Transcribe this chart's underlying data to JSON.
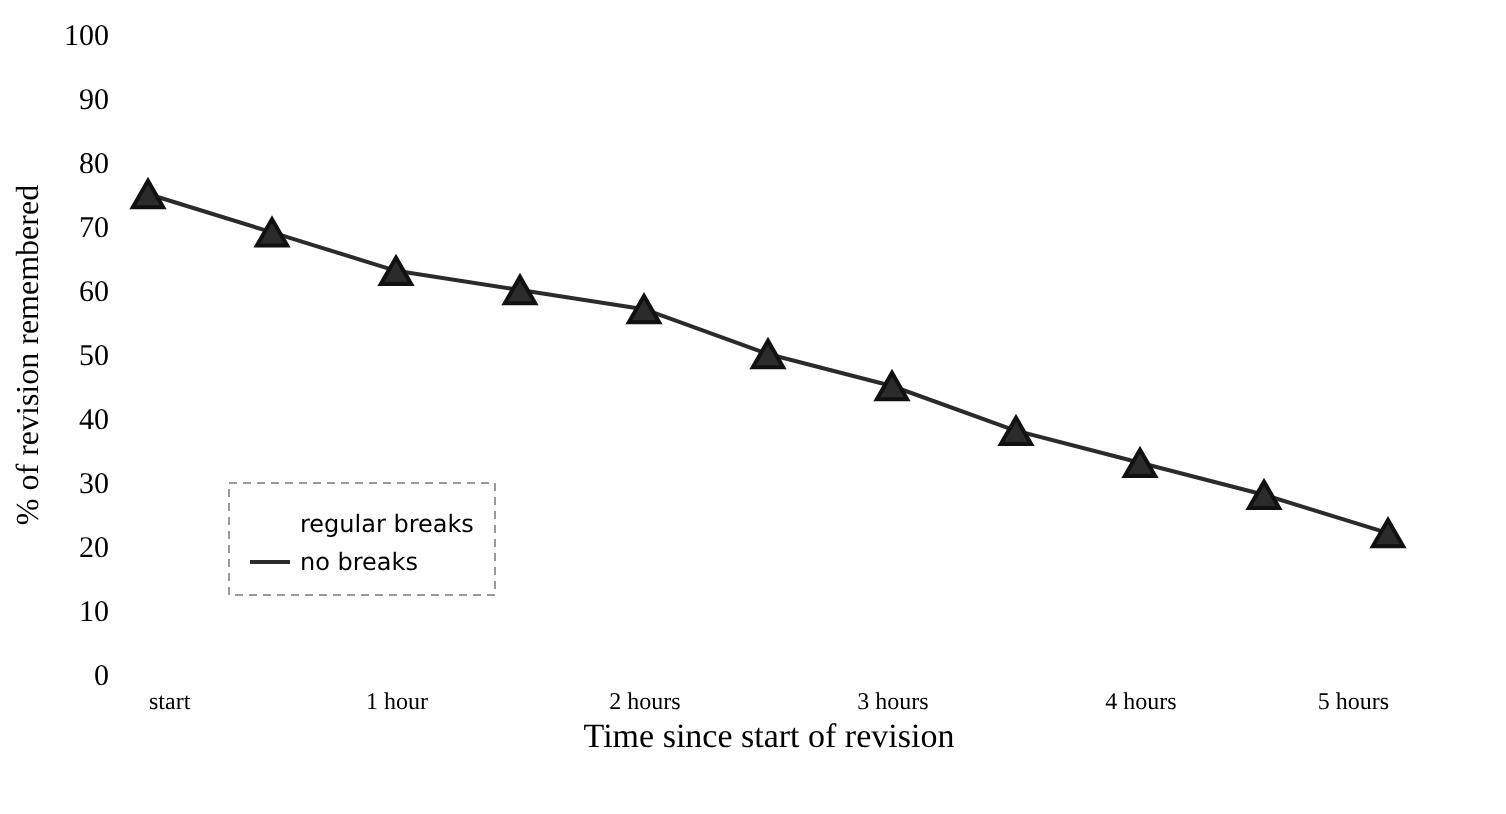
{
  "chart_data": {
    "type": "line",
    "xlabel": "Time since start of revision",
    "ylabel": "% of revision remembered",
    "x": [
      0,
      0.5,
      1,
      1.5,
      2,
      2.5,
      3,
      3.5,
      4,
      4.5,
      5
    ],
    "series": [
      {
        "name": "regular breaks",
        "values": [
          null,
          null,
          null,
          null,
          null,
          null,
          null,
          null,
          null,
          null,
          null
        ]
      },
      {
        "name": "no breaks",
        "color": "#2b2b2b",
        "values": [
          75,
          69,
          63,
          60,
          57,
          50,
          45,
          38,
          33,
          28,
          22
        ]
      }
    ],
    "xlim": [
      0,
      5
    ],
    "xticks": [
      {
        "value": 0,
        "label": "start"
      },
      {
        "value": 1,
        "label": "1 hour"
      },
      {
        "value": 2,
        "label": "2 hours"
      },
      {
        "value": 3,
        "label": "3 hours"
      },
      {
        "value": 4,
        "label": "4 hours"
      },
      {
        "value": 5,
        "label": "5 hours"
      }
    ],
    "ylim": [
      0,
      100
    ],
    "yticks": [
      0,
      10,
      20,
      30,
      40,
      50,
      60,
      70,
      80,
      90,
      100
    ],
    "marker": "triangle",
    "line_style": "solid",
    "legend": "bottom left"
  }
}
